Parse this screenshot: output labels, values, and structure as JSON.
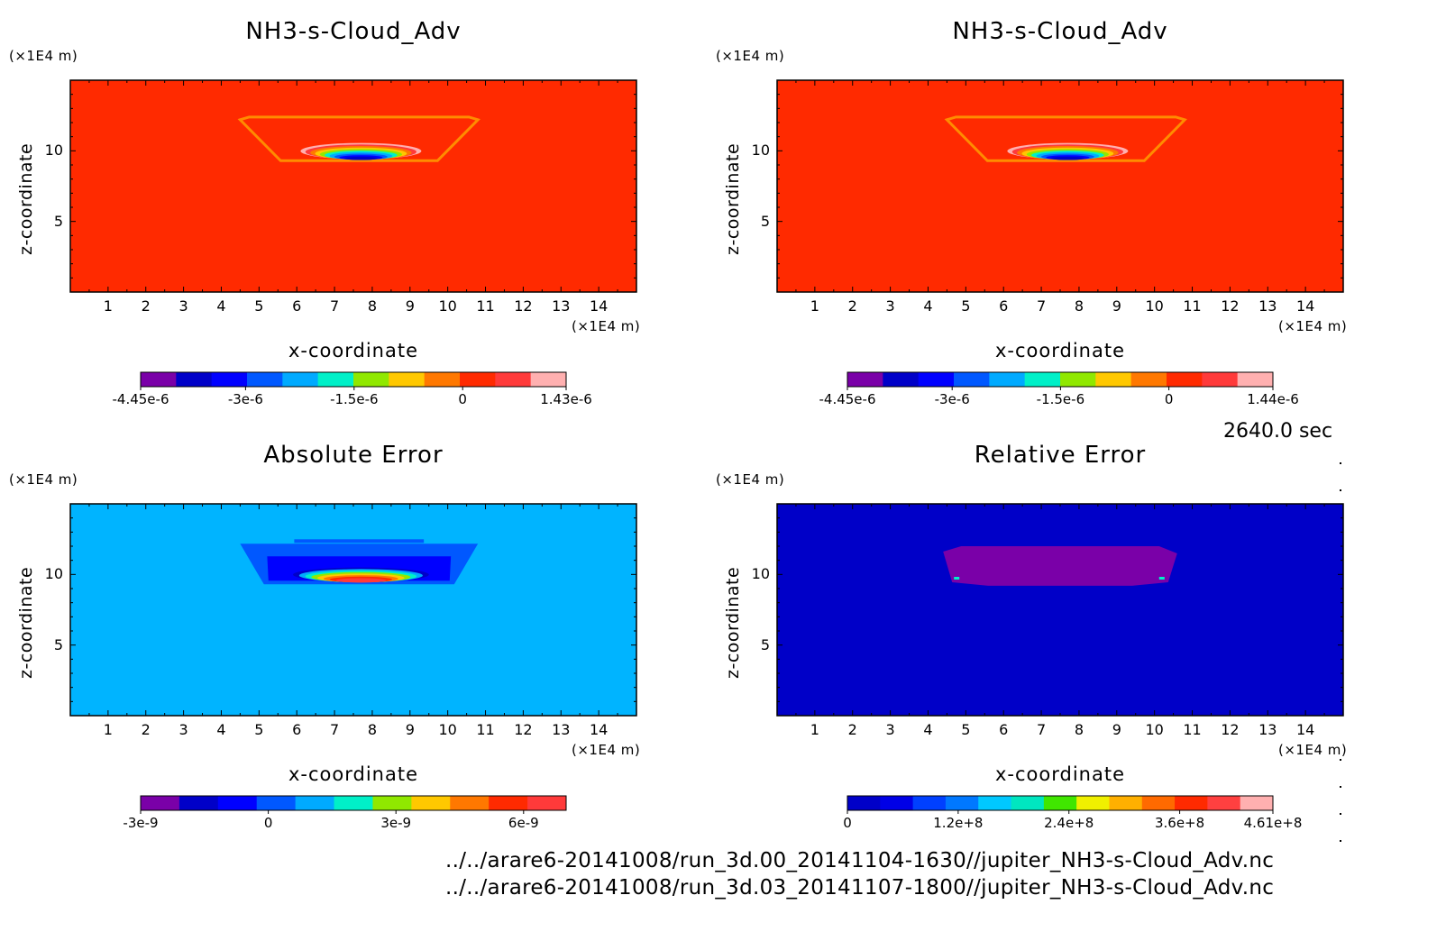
{
  "panels": [
    {
      "id": "p1",
      "title": "NH3-s-Cloud_Adv",
      "x_unit": "(×1E4 m)",
      "y_unit": "(×1E4 m)",
      "xlabel": "x-coordinate",
      "ylabel": "z-coordinate",
      "x_ticks": [
        "1",
        "2",
        "3",
        "4",
        "5",
        "6",
        "7",
        "8",
        "9",
        "10",
        "11",
        "12",
        "13",
        "14"
      ],
      "y_ticks": [
        "5",
        "10"
      ],
      "colorbar_labels": [
        "-4.45e-6",
        "-3e-6",
        "-1.5e-6",
        "0",
        "1.43e-6"
      ]
    },
    {
      "id": "p2",
      "title": "NH3-s-Cloud_Adv",
      "x_unit": "(×1E4 m)",
      "y_unit": "(×1E4 m)",
      "xlabel": "x-coordinate",
      "ylabel": "z-coordinate",
      "x_ticks": [
        "1",
        "2",
        "3",
        "4",
        "5",
        "6",
        "7",
        "8",
        "9",
        "10",
        "11",
        "12",
        "13",
        "14"
      ],
      "y_ticks": [
        "5",
        "10"
      ],
      "colorbar_labels": [
        "-4.45e-6",
        "-3e-6",
        "-1.5e-6",
        "0",
        "1.44e-6"
      ]
    },
    {
      "id": "p3",
      "title": "Absolute Error",
      "x_unit": "(×1E4 m)",
      "y_unit": "(×1E4 m)",
      "xlabel": "x-coordinate",
      "ylabel": "z-coordinate",
      "x_ticks": [
        "1",
        "2",
        "3",
        "4",
        "5",
        "6",
        "7",
        "8",
        "9",
        "10",
        "11",
        "12",
        "13",
        "14"
      ],
      "y_ticks": [
        "5",
        "10"
      ],
      "colorbar_labels": [
        "-3e-9",
        "0",
        "3e-9",
        "6e-9"
      ]
    },
    {
      "id": "p4",
      "title": "Relative Error",
      "x_unit": "(×1E4 m)",
      "y_unit": "(×1E4 m)",
      "xlabel": "x-coordinate",
      "ylabel": "z-coordinate",
      "x_ticks": [
        "1",
        "2",
        "3",
        "4",
        "5",
        "6",
        "7",
        "8",
        "9",
        "10",
        "11",
        "12",
        "13",
        "14"
      ],
      "y_ticks": [
        "5",
        "10"
      ],
      "colorbar_labels": [
        "0",
        "1.2e+8",
        "2.4e+8",
        "3.6e+8",
        "4.61e+8"
      ]
    }
  ],
  "timestamp": "2640.0 sec",
  "footer_lines": [
    "../../arare6-20141008/run_3d.00_20141104-1630//jupiter_NH3-s-Cloud_Adv.nc",
    "../../arare6-20141008/run_3d.03_20141107-1800//jupiter_NH3-s-Cloud_Adv.nc"
  ],
  "chart_data": [
    {
      "type": "heatmap",
      "title": "NH3-s-Cloud_Adv",
      "xlabel": "x-coordinate",
      "ylabel": "z-coordinate",
      "xlim": [
        0,
        15
      ],
      "ylim": [
        0,
        15
      ],
      "background_color": "#ff2a00",
      "colorbar": {
        "min": -4.45e-06,
        "max": 1.43e-06,
        "tick_values": [
          -4.45e-06,
          -3e-06,
          -1.5e-06,
          0,
          1.43e-06
        ],
        "colors": [
          "#7a00a8",
          "#0000c8",
          "#0000ff",
          "#0058ff",
          "#00aaff",
          "#00f0c8",
          "#90e800",
          "#ffc800",
          "#ff7800",
          "#ff2a00",
          "#ff3a3a",
          "#ffb0b0"
        ]
      },
      "features": [
        {
          "name": "cloud-boundary",
          "x_range": [
            4.5,
            10.8
          ],
          "z_range": [
            9.3,
            12.2
          ],
          "color": "#ff8c00"
        },
        {
          "name": "cloud-core",
          "x_center": 7.7,
          "z_center": 9.6,
          "x_halfwidth": 1.6,
          "value_min": -4.45e-06
        }
      ]
    },
    {
      "type": "heatmap",
      "title": "NH3-s-Cloud_Adv",
      "xlabel": "x-coordinate",
      "ylabel": "z-coordinate",
      "xlim": [
        0,
        15
      ],
      "ylim": [
        0,
        15
      ],
      "background_color": "#ff2a00",
      "colorbar": {
        "min": -4.45e-06,
        "max": 1.44e-06,
        "tick_values": [
          -4.45e-06,
          -3e-06,
          -1.5e-06,
          0,
          1.44e-06
        ],
        "colors": [
          "#7a00a8",
          "#0000c8",
          "#0000ff",
          "#0058ff",
          "#00aaff",
          "#00f0c8",
          "#90e800",
          "#ffc800",
          "#ff7800",
          "#ff2a00",
          "#ff3a3a",
          "#ffb0b0"
        ]
      },
      "features": [
        {
          "name": "cloud-boundary",
          "x_range": [
            4.5,
            10.8
          ],
          "z_range": [
            9.3,
            12.2
          ],
          "color": "#ff8c00"
        },
        {
          "name": "cloud-core",
          "x_center": 7.7,
          "z_center": 9.6,
          "x_halfwidth": 1.6,
          "value_min": -4.45e-06
        }
      ]
    },
    {
      "type": "heatmap",
      "title": "Absolute Error",
      "xlabel": "x-coordinate",
      "ylabel": "z-coordinate",
      "xlim": [
        0,
        15
      ],
      "ylim": [
        0,
        15
      ],
      "background_color": "#00b4ff",
      "colorbar": {
        "min": -3e-09,
        "max": 7e-09,
        "tick_values": [
          -3e-09,
          0,
          3e-09,
          6e-09
        ],
        "colors": [
          "#7a00a8",
          "#0000c8",
          "#0000ff",
          "#0058ff",
          "#00aaff",
          "#00f0c8",
          "#90e800",
          "#ffc800",
          "#ff7800",
          "#ff2a00",
          "#ff3a3a"
        ]
      },
      "features": [
        {
          "name": "error-region",
          "x_range": [
            4.5,
            10.8
          ],
          "z_range": [
            9.3,
            12.3
          ],
          "color": "#0058ff"
        },
        {
          "name": "error-core",
          "x_center": 7.7,
          "z_center": 9.6,
          "x_halfwidth": 1.8,
          "value_max": 6e-09
        }
      ]
    },
    {
      "type": "heatmap",
      "title": "Relative Error",
      "xlabel": "x-coordinate",
      "ylabel": "z-coordinate",
      "xlim": [
        0,
        15
      ],
      "ylim": [
        0,
        15
      ],
      "background_color": "#0000c8",
      "colorbar": {
        "min": 0,
        "max": 461000000.0,
        "tick_values": [
          0,
          120000000.0,
          240000000.0,
          360000000.0,
          461000000.0
        ],
        "colors": [
          "#0000c8",
          "#0000e6",
          "#0040ff",
          "#0078ff",
          "#00c8ff",
          "#00e6c0",
          "#40e600",
          "#f0f000",
          "#ffb000",
          "#ff6a00",
          "#ff2a00",
          "#ff4040",
          "#ffb0b0"
        ]
      },
      "features": [
        {
          "name": "relative-error-region",
          "x_range": [
            4.4,
            10.6
          ],
          "z_range": [
            9.2,
            12.0
          ],
          "color": "#7a00a8"
        }
      ]
    }
  ]
}
